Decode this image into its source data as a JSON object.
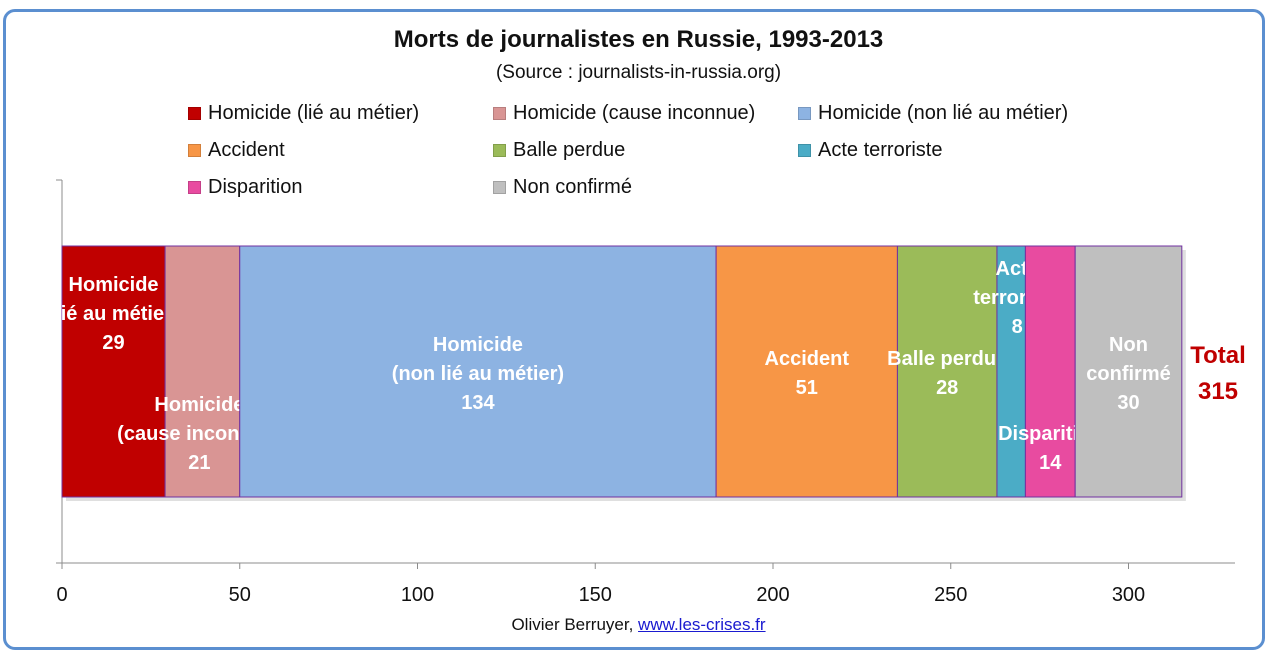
{
  "chart_data": {
    "type": "bar",
    "orientation": "horizontal",
    "stacked": true,
    "title": "Morts de journalistes en Russie, 1993-2013",
    "subtitle": "(Source : journalists-in-russia.org)",
    "xlim": [
      0,
      330
    ],
    "xticks": [
      0,
      50,
      100,
      150,
      200,
      250,
      300
    ],
    "grid": false,
    "legend_position": "top",
    "series": [
      {
        "name": "Homicide (lié au métier)",
        "label_lines": [
          "Homicide",
          "(lié au métier)"
        ],
        "value": 29,
        "color": "#c00000"
      },
      {
        "name": "Homicide (cause inconnue)",
        "label_lines": [
          "Homicide",
          "(cause inconnue)"
        ],
        "value": 21,
        "color": "#d99594"
      },
      {
        "name": "Homicide (non lié au métier)",
        "label_lines": [
          "Homicide",
          "(non lié au métier)"
        ],
        "value": 134,
        "color": "#8db3e2"
      },
      {
        "name": "Accident",
        "label_lines": [
          "Accident"
        ],
        "value": 51,
        "color": "#f79646"
      },
      {
        "name": "Balle perdue",
        "label_lines": [
          "Balle perdue"
        ],
        "value": 28,
        "color": "#9bbb59"
      },
      {
        "name": "Acte terroriste",
        "label_lines": [
          "Acte",
          "terroriste"
        ],
        "value": 8,
        "color": "#4bacc6"
      },
      {
        "name": "Disparition",
        "label_lines": [
          "Disparition"
        ],
        "value": 14,
        "color": "#e84ba0"
      },
      {
        "name": "Non confirmé",
        "label_lines": [
          "Non",
          "confirmé"
        ],
        "value": 30,
        "color": "#bfbfbf"
      }
    ],
    "total_label": "Total",
    "total_value": "315",
    "total_color": "#c00000"
  },
  "credit": {
    "author": "Olivier Berruyer,",
    "link": "www.les-crises.fr"
  }
}
